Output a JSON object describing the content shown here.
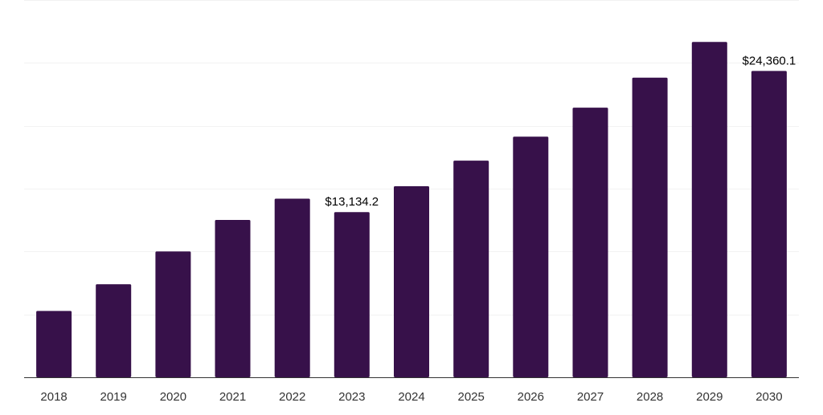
{
  "chart_data": {
    "type": "bar",
    "categories": [
      "2018",
      "2019",
      "2020",
      "2021",
      "2022",
      "2023",
      "2024",
      "2025",
      "2026",
      "2027",
      "2028",
      "2029",
      "2030"
    ],
    "values": [
      5270,
      7400,
      10010,
      12510,
      14200,
      13134.2,
      15190,
      17230,
      19130,
      21440,
      23830,
      26660,
      24360.1
    ],
    "data_labels": [
      {
        "index": 5,
        "text": "$13,134.2"
      },
      {
        "index": 12,
        "text": "$24,360.1"
      }
    ],
    "title": "",
    "xlabel": "",
    "ylabel": "",
    "ylim": [
      0,
      30000
    ],
    "grid": true,
    "y_tick_labels_shown": false,
    "colors": {
      "bar": "#37114a",
      "grid": "#f2f2f2",
      "axis": "#333333",
      "tick_text": "#333333",
      "label_text": "#000000"
    }
  }
}
